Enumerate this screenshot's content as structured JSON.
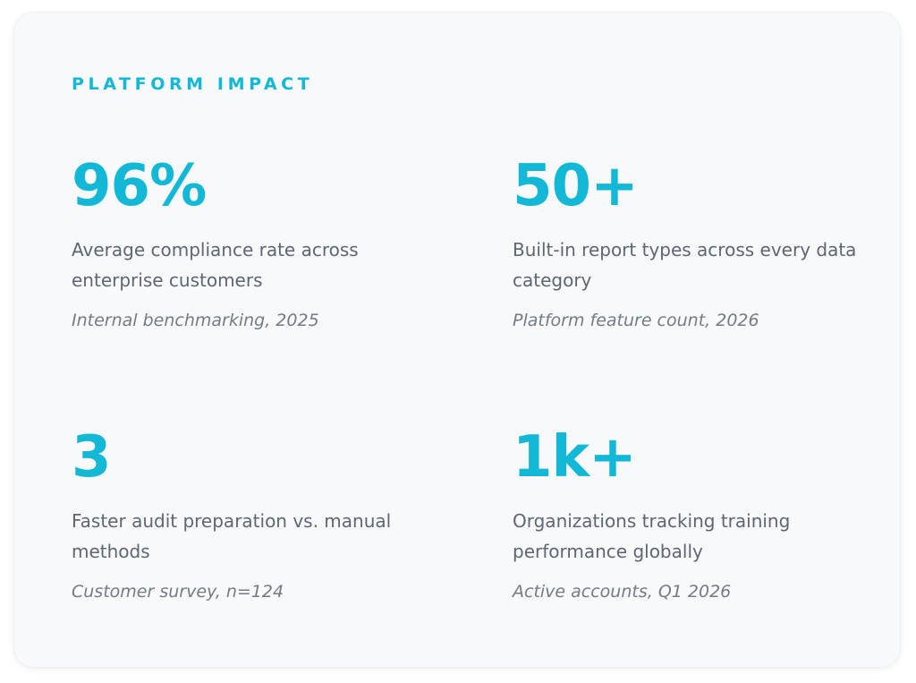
{
  "section": {
    "eyebrow": "PLATFORM IMPACT"
  },
  "colors": {
    "accent": "#12b8d6",
    "text": "#5e6673",
    "muted": "#737b86",
    "card_background": "#f7f9fb"
  },
  "stats": [
    {
      "value": "96%",
      "label": "Average compliance rate across enterprise customers",
      "source": "Internal benchmarking, 2025"
    },
    {
      "value": "50+",
      "label": "Built-in report types across every data category",
      "source": "Platform feature count, 2026"
    },
    {
      "value": "3",
      "label": "Faster audit preparation vs. manual methods",
      "source": "Customer survey, n=124"
    },
    {
      "value": "1k+",
      "label": "Organizations tracking training performance globally",
      "source": "Active accounts, Q1 2026"
    }
  ]
}
